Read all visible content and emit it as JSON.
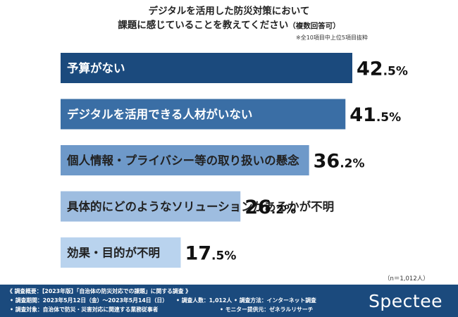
{
  "header": {
    "title_line1": "デジタルを活用した防災対策において",
    "title_line2": "課題に感じていることを教えてください",
    "title_suffix": "（複数回答可）",
    "footnote": "※全10項目中上位5項目抜粋"
  },
  "chart_data": {
    "type": "bar",
    "orientation": "horizontal",
    "title": "デジタルを活用した防災対策において課題に感じていることを教えてください（複数回答可）",
    "unit": "%",
    "categories": [
      "予算がない",
      "デジタルを活用できる人材がいない",
      "個人情報・プライバシー等の取り扱いの懸念",
      "具体的にどのようなソリューションがあるかが不明",
      "効果・目的が不明"
    ],
    "values": [
      42.5,
      41.5,
      36.2,
      26.2,
      17.5
    ],
    "value_labels": [
      {
        "int": "42",
        "dec": ".5%"
      },
      {
        "int": "41",
        "dec": ".5%"
      },
      {
        "int": "36",
        "dec": ".2%"
      },
      {
        "int": "26",
        "dec": ".2%"
      },
      {
        "int": "17",
        "dec": ".5%"
      }
    ],
    "colors": [
      "#1b4a7d",
      "#3a6ea5",
      "#6e99c9",
      "#9ebde0",
      "#b9d3ee"
    ],
    "label_colors": [
      "#ffffff",
      "#ffffff",
      "#222222",
      "#222222",
      "#222222"
    ],
    "xlim": [
      0,
      42.5
    ]
  },
  "sample_note": "（n＝1,012人）",
  "footer": {
    "overview": "《 調査概要：【2023年版】「自治体の防災対応での課題」に関する調査 》",
    "period": "• 調査期間：2023年5月12日（金）〜2023年5月14日（日）",
    "count": "• 調査人数：1,012人",
    "method": "• 調査方法：インターネット調査",
    "target": "• 調査対象：自治体で防災・災害対応に関連する業務従事者",
    "provider": "• モニター提供元：ゼネラルリサーチ",
    "logo": "Spectee",
    "background": "#1b4a7d"
  }
}
